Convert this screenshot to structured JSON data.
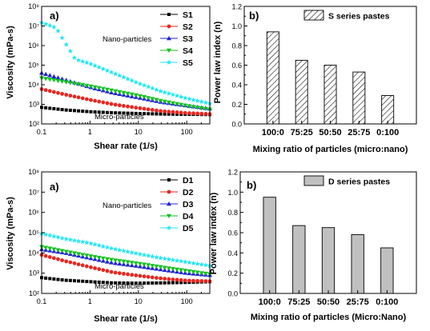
{
  "chart_data": [
    {
      "type": "scatter",
      "panel_label": "a)",
      "xlabel": "Shear rate (1/s)",
      "ylabel": "Viscosity (mPa-s)",
      "xscale": "log",
      "yscale": "log",
      "xlim": [
        0.1,
        300
      ],
      "ylim": [
        100,
        100000000
      ],
      "xticks": [
        "0.1",
        "1",
        "10",
        "100"
      ],
      "yticks": [
        "10²",
        "10³",
        "10⁴",
        "10⁵",
        "10⁶",
        "10⁷",
        "10⁸"
      ],
      "legend_position": "top-right",
      "annotations": [
        "Nano-particles",
        "Micro-particles"
      ],
      "series": [
        {
          "name": "S1",
          "color": "#000000",
          "marker": "square",
          "points": [
            [
              0.1,
              700
            ],
            [
              0.3,
              520
            ],
            [
              1,
              420
            ],
            [
              3,
              370
            ],
            [
              10,
              340
            ],
            [
              30,
              320
            ],
            [
              100,
              310
            ],
            [
              300,
              300
            ]
          ]
        },
        {
          "name": "S2",
          "color": "#e8261f",
          "marker": "circle",
          "points": [
            [
              0.1,
              6000
            ],
            [
              0.3,
              3200
            ],
            [
              1,
              1700
            ],
            [
              3,
              1000
            ],
            [
              10,
              650
            ],
            [
              30,
              450
            ],
            [
              100,
              360
            ],
            [
              300,
              320
            ]
          ]
        },
        {
          "name": "S3",
          "color": "#1f24d4",
          "marker": "triangle-up",
          "points": [
            [
              0.1,
              40000
            ],
            [
              0.3,
              18000
            ],
            [
              1,
              7500
            ],
            [
              3,
              3800
            ],
            [
              10,
              2200
            ],
            [
              30,
              1300
            ],
            [
              100,
              850
            ],
            [
              300,
              600
            ]
          ]
        },
        {
          "name": "S4",
          "color": "#12c21e",
          "marker": "triangle-down",
          "points": [
            [
              0.1,
              22000
            ],
            [
              0.3,
              14000
            ],
            [
              1,
              8500
            ],
            [
              3,
              5000
            ],
            [
              10,
              2800
            ],
            [
              30,
              1500
            ],
            [
              100,
              850
            ],
            [
              300,
              550
            ]
          ]
        },
        {
          "name": "S5",
          "color": "#21e6f2",
          "marker": "star",
          "points": [
            [
              0.1,
              15000000
            ],
            [
              0.2,
              8000000
            ],
            [
              0.3,
              1500000
            ],
            [
              0.5,
              200000
            ],
            [
              1,
              120000
            ],
            [
              3,
              40000
            ],
            [
              10,
              12000
            ],
            [
              30,
              4500
            ],
            [
              100,
              2000
            ],
            [
              300,
              1100
            ]
          ]
        }
      ]
    },
    {
      "type": "bar",
      "panel_label": "b)",
      "legend": "S series pastes",
      "xlabel": "Mixing ratio of particles (micro:nano)",
      "ylabel": "Power law index (n)",
      "categories": [
        "100:0",
        "75:25",
        "50:50",
        "25:75",
        "0:100"
      ],
      "values": [
        0.94,
        0.65,
        0.6,
        0.53,
        0.29
      ],
      "ylim": [
        0.0,
        1.2
      ],
      "yticks": [
        "0.0",
        "0.2",
        "0.4",
        "0.6",
        "0.8",
        "1.0",
        "1.2"
      ],
      "bar_style": "hatched",
      "legend_position": "top-right"
    },
    {
      "type": "scatter",
      "panel_label": "a)",
      "xlabel": "Shear rate (1/s)",
      "ylabel": "Viscosity (mPa-s)",
      "xscale": "log",
      "yscale": "log",
      "xlim": [
        0.1,
        300
      ],
      "ylim": [
        100,
        100000000
      ],
      "xticks": [
        "0.1",
        "1",
        "10",
        "100"
      ],
      "yticks": [
        "10²",
        "10³",
        "10⁴",
        "10⁵",
        "10⁶",
        "10⁷",
        "10⁸"
      ],
      "legend_position": "top-right",
      "annotations": [
        "Nano-particles",
        "Micro-particles"
      ],
      "series": [
        {
          "name": "D1",
          "color": "#000000",
          "marker": "square",
          "points": [
            [
              0.1,
              600
            ],
            [
              0.3,
              450
            ],
            [
              1,
              380
            ],
            [
              3,
              330
            ],
            [
              10,
              320
            ],
            [
              30,
              330
            ],
            [
              100,
              350
            ],
            [
              300,
              380
            ]
          ]
        },
        {
          "name": "D2",
          "color": "#e8261f",
          "marker": "circle",
          "points": [
            [
              0.1,
              8000
            ],
            [
              0.3,
              4000
            ],
            [
              1,
              2000
            ],
            [
              3,
              1100
            ],
            [
              10,
              750
            ],
            [
              30,
              550
            ],
            [
              100,
              430
            ],
            [
              300,
              400
            ]
          ]
        },
        {
          "name": "D3",
          "color": "#1f24d4",
          "marker": "triangle-up",
          "points": [
            [
              0.1,
              15000
            ],
            [
              0.3,
              10000
            ],
            [
              1,
              5500
            ],
            [
              3,
              3200
            ],
            [
              10,
              2200
            ],
            [
              30,
              1500
            ],
            [
              100,
              1000
            ],
            [
              300,
              800
            ]
          ]
        },
        {
          "name": "D4",
          "color": "#12c21e",
          "marker": "triangle-down",
          "points": [
            [
              0.1,
              20000
            ],
            [
              0.3,
              12000
            ],
            [
              1,
              7000
            ],
            [
              3,
              4500
            ],
            [
              10,
              3000
            ],
            [
              30,
              2000
            ],
            [
              100,
              1300
            ],
            [
              300,
              900
            ]
          ]
        },
        {
          "name": "D5",
          "color": "#21e6f2",
          "marker": "star",
          "points": [
            [
              0.1,
              90000
            ],
            [
              0.3,
              50000
            ],
            [
              1,
              30000
            ],
            [
              3,
              16000
            ],
            [
              10,
              9000
            ],
            [
              30,
              5500
            ],
            [
              100,
              3500
            ],
            [
              300,
              2300
            ]
          ]
        }
      ]
    },
    {
      "type": "bar",
      "panel_label": "b)",
      "legend": "D series pastes",
      "xlabel": "Mixing ratio of particles (Micro:Nano)",
      "ylabel": "Power law index (n)",
      "categories": [
        "100:0",
        "75:25",
        "50:50",
        "25:75",
        "0:100"
      ],
      "values": [
        0.95,
        0.67,
        0.65,
        0.58,
        0.45
      ],
      "ylim": [
        0.0,
        1.2
      ],
      "yticks": [
        "0.0",
        "0.2",
        "0.4",
        "0.6",
        "0.8",
        "1.0",
        "1.2"
      ],
      "bar_style": "solid gray",
      "legend_position": "top-right"
    }
  ]
}
